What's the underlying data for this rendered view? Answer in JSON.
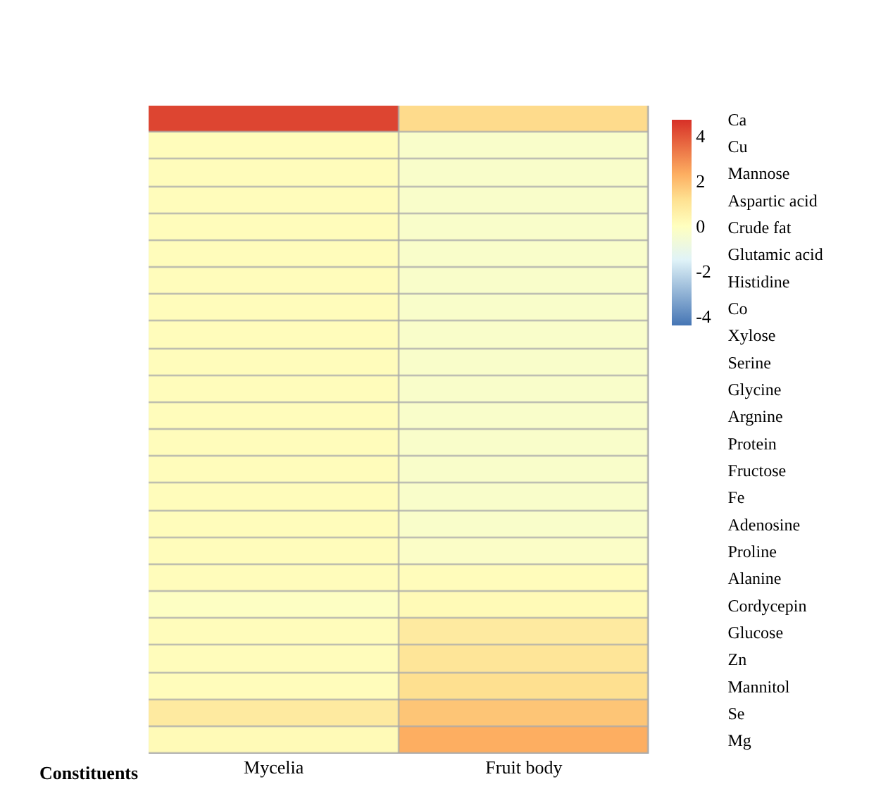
{
  "chart_data": {
    "type": "heatmap",
    "xlabel": "Constituents",
    "categories": [
      "Mycelia",
      "Fruit body"
    ],
    "y_categories": [
      "Ca",
      "Cu",
      "Mannose",
      "Aspartic acid",
      "Crude fat",
      "Glutamic acid",
      "Histidine",
      "Co",
      "Xylose",
      "Serine",
      "Glycine",
      "Argnine",
      "Protein",
      "Fructose",
      "Fe",
      "Adenosine",
      "Proline",
      "Alanine",
      "Cordycepin",
      "Glucose",
      "Zn",
      "Mannitol",
      "Se",
      "Mg"
    ],
    "cells": [
      [
        4.3,
        1.3
      ],
      [
        0.1,
        -0.3
      ],
      [
        0.1,
        -0.3
      ],
      [
        0.1,
        -0.3
      ],
      [
        0.1,
        -0.3
      ],
      [
        0.1,
        -0.3
      ],
      [
        0.1,
        -0.3
      ],
      [
        0.1,
        -0.3
      ],
      [
        0.1,
        -0.3
      ],
      [
        0.1,
        -0.3
      ],
      [
        0.1,
        -0.3
      ],
      [
        0.1,
        -0.3
      ],
      [
        0.1,
        -0.3
      ],
      [
        0.1,
        -0.3
      ],
      [
        0.1,
        -0.3
      ],
      [
        0.1,
        -0.3
      ],
      [
        0.1,
        -0.2
      ],
      [
        0.1,
        0.1
      ],
      [
        -0.1,
        0.2
      ],
      [
        0.1,
        0.8
      ],
      [
        0.1,
        1.0
      ],
      [
        0.1,
        1.2
      ],
      [
        0.8,
        1.8
      ],
      [
        0.2,
        2.3
      ]
    ],
    "clim": [
      -4.4,
      4.7
    ],
    "cticks": [
      -4,
      -2,
      0,
      2,
      4
    ]
  }
}
